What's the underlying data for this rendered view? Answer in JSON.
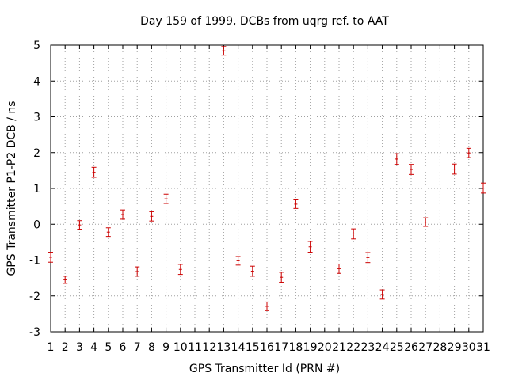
{
  "chart_data": {
    "type": "scatter",
    "title": "Day 159 of 1999, DCBs from uqrg ref. to AAT",
    "xlabel": "GPS Transmitter Id (PRN #)",
    "ylabel": "GPS Transmitter P1-P2 DCB / ns",
    "xlim": [
      1,
      31
    ],
    "ylim": [
      -3,
      5
    ],
    "x_ticks": [
      "1",
      "2",
      "3",
      "4",
      "5",
      "6",
      "7",
      "8",
      "9",
      "10",
      "11",
      "12",
      "13",
      "14",
      "15",
      "16",
      "17",
      "18",
      "19",
      "20",
      "21",
      "22",
      "23",
      "24",
      "25",
      "26",
      "27",
      "28",
      "29",
      "30",
      "31"
    ],
    "y_ticks": [
      "-3",
      "-2",
      "-1",
      "0",
      "1",
      "2",
      "3",
      "4",
      "5"
    ],
    "grid": true,
    "error_bars": true,
    "marker_color": "#cc0000",
    "series": [
      {
        "points": [
          {
            "x": 1,
            "y": -0.92,
            "err": 0.14
          },
          {
            "x": 2,
            "y": -1.55,
            "err": 0.1
          },
          {
            "x": 3,
            "y": -0.02,
            "err": 0.12
          },
          {
            "x": 4,
            "y": 1.45,
            "err": 0.14
          },
          {
            "x": 5,
            "y": -0.22,
            "err": 0.12
          },
          {
            "x": 6,
            "y": 0.27,
            "err": 0.13
          },
          {
            "x": 7,
            "y": -1.32,
            "err": 0.13
          },
          {
            "x": 8,
            "y": 0.22,
            "err": 0.13
          },
          {
            "x": 9,
            "y": 0.71,
            "err": 0.13
          },
          {
            "x": 10,
            "y": -1.26,
            "err": 0.14
          },
          {
            "x": 13,
            "y": 4.84,
            "err": 0.12
          },
          {
            "x": 14,
            "y": -1.02,
            "err": 0.12
          },
          {
            "x": 15,
            "y": -1.31,
            "err": 0.14
          },
          {
            "x": 16,
            "y": -2.29,
            "err": 0.12
          },
          {
            "x": 17,
            "y": -1.48,
            "err": 0.14
          },
          {
            "x": 18,
            "y": 0.56,
            "err": 0.12
          },
          {
            "x": 19,
            "y": -0.63,
            "err": 0.15
          },
          {
            "x": 21,
            "y": -1.24,
            "err": 0.13
          },
          {
            "x": 22,
            "y": -0.27,
            "err": 0.14
          },
          {
            "x": 23,
            "y": -0.93,
            "err": 0.14
          },
          {
            "x": 24,
            "y": -1.96,
            "err": 0.13
          },
          {
            "x": 25,
            "y": 1.82,
            "err": 0.15
          },
          {
            "x": 26,
            "y": 1.53,
            "err": 0.14
          },
          {
            "x": 27,
            "y": 0.06,
            "err": 0.12
          },
          {
            "x": 29,
            "y": 1.54,
            "err": 0.14
          },
          {
            "x": 30,
            "y": 1.99,
            "err": 0.13
          },
          {
            "x": 31,
            "y": 1.01,
            "err": 0.14
          }
        ]
      }
    ]
  }
}
